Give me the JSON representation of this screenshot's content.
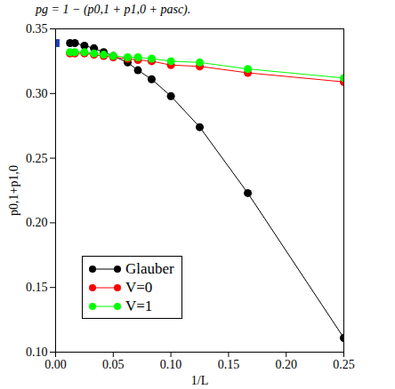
{
  "chart_data": {
    "type": "line",
    "title": "pg = 1 − (p0,1 + p1,0 + pasc).",
    "x_label": "1/L",
    "y_label": "p0,1+p1,0",
    "xlim": [
      0,
      0.25
    ],
    "ylim": [
      0.1,
      0.35
    ],
    "xticks": [
      {
        "value": 0,
        "label": "0.00"
      },
      {
        "value": 0.05,
        "label": "0.05"
      },
      {
        "value": 0.1,
        "label": "0.10"
      },
      {
        "value": 0.15,
        "label": "0.15"
      },
      {
        "value": 0.2,
        "label": "0.20"
      },
      {
        "value": 0.25,
        "label": "0.25"
      }
    ],
    "yticks": [
      {
        "value": 0.1,
        "label": "0.10"
      },
      {
        "value": 0.15,
        "label": "0.15"
      },
      {
        "value": 0.2,
        "label": "0.20"
      },
      {
        "value": 0.25,
        "label": "0.25"
      },
      {
        "value": 0.3,
        "label": "0.30"
      },
      {
        "value": 0.35,
        "label": "0.35"
      }
    ],
    "grid": false,
    "legend": "lower left",
    "x": [
      0.0125,
      0.0167,
      0.025,
      0.0333,
      0.0417,
      0.05,
      0.0625,
      0.0714,
      0.0833,
      0.1,
      0.125,
      0.1667,
      0.25
    ],
    "series": [
      {
        "name": "Glauber",
        "color": "#000000",
        "marker": "circle",
        "values": [
          0.339,
          0.339,
          0.337,
          0.335,
          0.332,
          0.329,
          0.324,
          0.318,
          0.311,
          0.298,
          0.274,
          0.223,
          0.111
        ]
      },
      {
        "name": "V=0",
        "color": "#ff0000",
        "marker": "circle",
        "values": [
          0.331,
          0.331,
          0.331,
          0.33,
          0.329,
          0.328,
          0.327,
          0.326,
          0.325,
          0.322,
          0.321,
          0.316,
          0.309
        ]
      },
      {
        "name": "V=1",
        "color": "#00ff00",
        "marker": "circle",
        "values": [
          0.332,
          0.332,
          0.332,
          0.331,
          0.33,
          0.329,
          0.328,
          0.328,
          0.327,
          0.325,
          0.324,
          0.319,
          0.312
        ]
      }
    ],
    "reference_point": {
      "x": 0,
      "y": 0.339,
      "color": "#1f3fbf",
      "marker": "square"
    }
  }
}
